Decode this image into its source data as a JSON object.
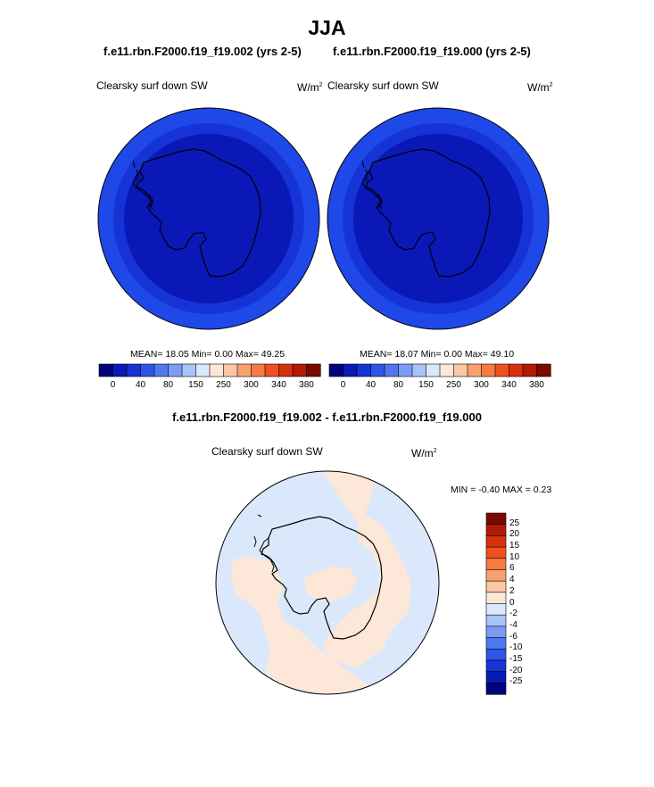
{
  "figure": {
    "title": "JJA",
    "top_panels": [
      {
        "case_label": "f.e11.rbn.F2000.f19_f19.002 (yrs 2-5)",
        "variable": "Clearsky surf down SW",
        "units_base": "W/m",
        "units_exp": "2",
        "stats": "MEAN=  18.05  Min=    0.00  Max=  49.25"
      },
      {
        "case_label": "f.e11.rbn.F2000.f19_f19.000 (yrs 2-5)",
        "variable": "Clearsky surf down SW",
        "units_base": "W/m",
        "units_exp": "2",
        "stats": "MEAN=  18.07  Min=    0.00  Max=  49.10"
      }
    ],
    "diff_panel": {
      "title": "f.e11.rbn.F2000.f19_f19.002 - f.e11.rbn.F2000.f19_f19.000",
      "variable": "Clearsky surf down SW",
      "units_base": "W/m",
      "units_exp": "2",
      "minmax": "MIN =  -0.40 MAX =   0.23"
    }
  },
  "colorbar_top": {
    "colors": [
      "#02037a",
      "#0a18b8",
      "#1633d6",
      "#2f55e8",
      "#4f78f0",
      "#7a9cf5",
      "#a9c2f8",
      "#dbe8fb",
      "#fde7d8",
      "#fbc7a4",
      "#f9a070",
      "#f67a43",
      "#f0501f",
      "#d8300d",
      "#b21a05",
      "#7a0a00"
    ],
    "tick_labels": [
      "0",
      "40",
      "80",
      "150",
      "250",
      "300",
      "340",
      "380"
    ]
  },
  "colorbar_diff": {
    "colors_top_to_bottom": [
      "#7a0a00",
      "#b21a05",
      "#d8300d",
      "#f0501f",
      "#f67a43",
      "#f9a070",
      "#fbc7a4",
      "#fde7d8",
      "#dbe8fb",
      "#a9c2f8",
      "#7a9cf5",
      "#4f78f0",
      "#2f55e8",
      "#1633d6",
      "#0a18b8",
      "#02037a"
    ],
    "tick_labels": [
      "25",
      "20",
      "15",
      "10",
      "6",
      "4",
      "2",
      "0",
      "-2",
      "-4",
      "-6",
      "-10",
      "-15",
      "-20",
      "-25"
    ]
  },
  "map_colors": {
    "outer_ring": "#1e48e8",
    "middle_ring": "#1633d6",
    "inner": "#0a18b8",
    "diff_negative": "#dbe8fb",
    "diff_positive": "#fde7d8"
  }
}
